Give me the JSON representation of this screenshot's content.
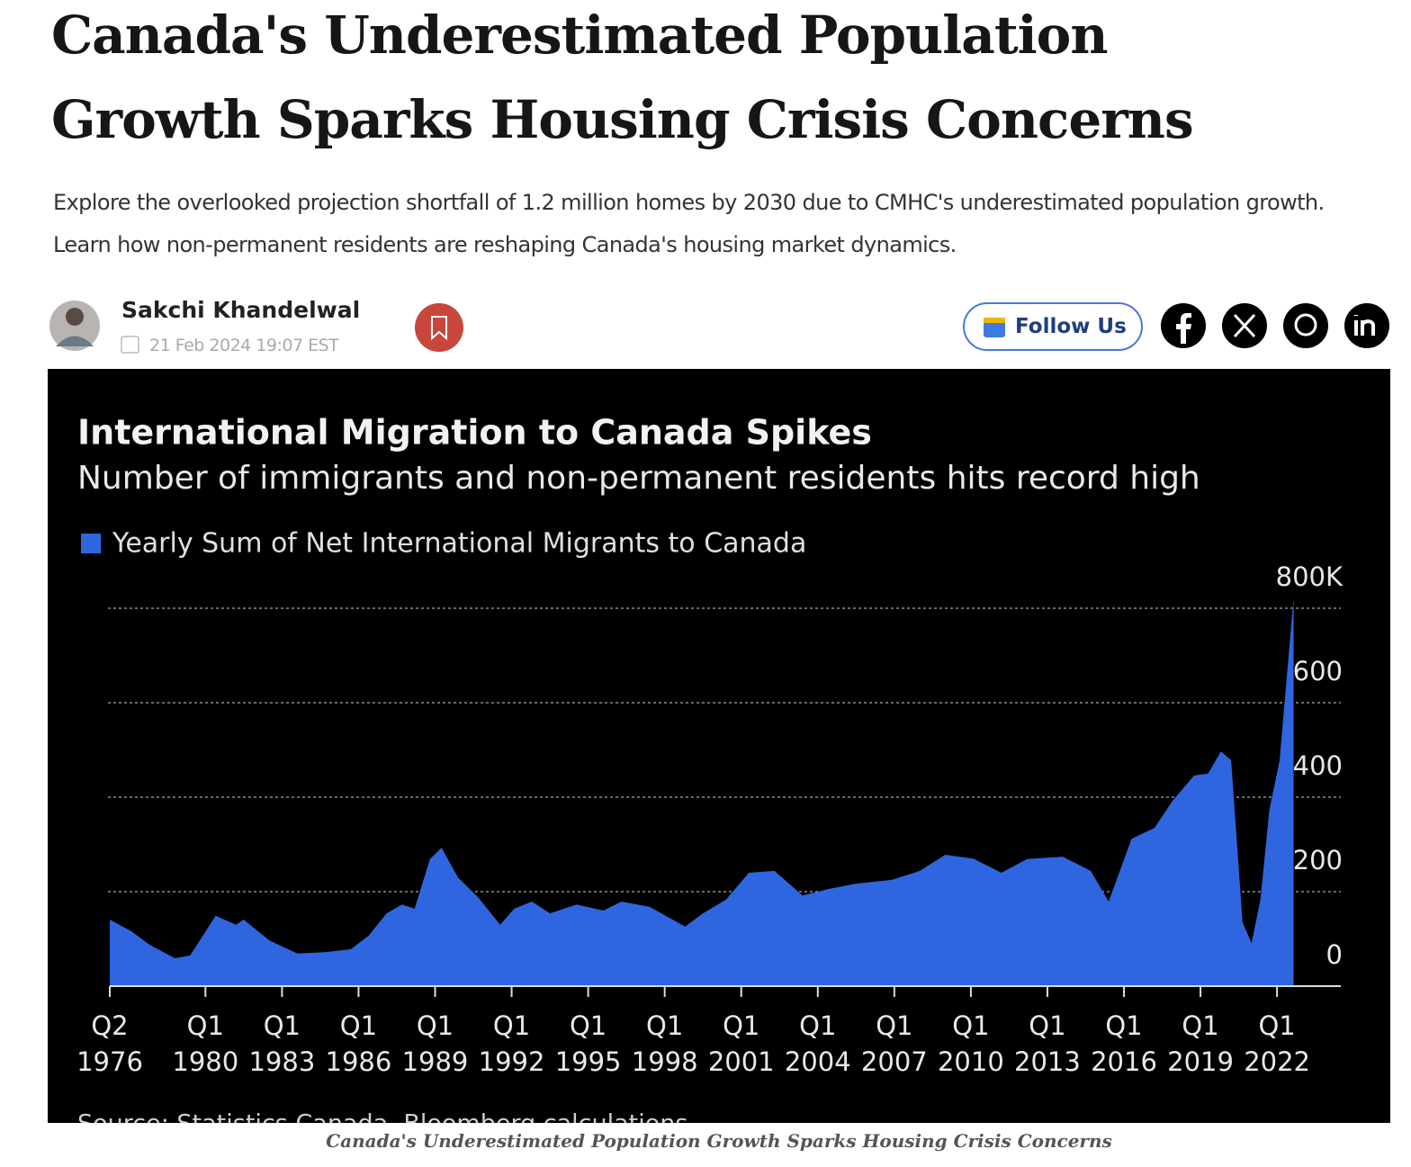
{
  "article": {
    "title": "Canada's Underestimated Population Growth Sparks Housing Crisis Concerns",
    "subtitle": "Explore the overlooked projection shortfall of 1.2 million homes by 2030 due to CMHC's underestimated population growth. Learn how non-permanent residents are reshaping Canada's housing market dynamics.",
    "author": "Sakchi Khandelwal",
    "date": "21 Feb 2024 19:07 EST",
    "follow_button": "Follow Us",
    "image_caption": "Canada's Underestimated Population Growth Sparks Housing Crisis Concerns"
  },
  "chart_data": {
    "type": "area",
    "title": "International Migration to Canada Spikes",
    "subtitle": "Number of immigrants and non-permanent residents hits record high",
    "source": "Source: Statistics Canada, Bloomberg calculations",
    "legend": "top-left",
    "grid": true,
    "x": [
      1976.25,
      1977.1,
      1977.8,
      1978.8,
      1979.4,
      1980.4,
      1981.2,
      1981.5,
      1982.5,
      1983.6,
      1984.7,
      1985.7,
      1986.4,
      1987.1,
      1987.7,
      1988.2,
      1988.8,
      1989.25,
      1989.9,
      1990.7,
      1991.55,
      1992.1,
      1992.8,
      1993.5,
      1994.55,
      1995.6,
      1996.3,
      1997.4,
      1998.8,
      1999.5,
      2000.4,
      2001.3,
      2002.3,
      2003.4,
      2004.45,
      2005.5,
      2006.9,
      2008.0,
      2009.0,
      2010.1,
      2011.2,
      2012.2,
      2013.6,
      2014.7,
      2015.4,
      2016.3,
      2017.2,
      2017.9,
      2018.75,
      2019.3,
      2019.8,
      2020.2,
      2020.65,
      2021.0,
      2021.35,
      2021.7,
      2022.1,
      2022.65
    ],
    "series": [
      {
        "name": "Yearly Sum of Net International Migrants to Canada",
        "color": "#2f66e0",
        "values": [
          141,
          116,
          88,
          59,
          65,
          149,
          130,
          141,
          97,
          69,
          72,
          78,
          107,
          154,
          173,
          164,
          269,
          293,
          230,
          187,
          130,
          164,
          179,
          154,
          173,
          160,
          179,
          168,
          126,
          154,
          183,
          240,
          244,
          192,
          206,
          217,
          225,
          244,
          278,
          270,
          240,
          269,
          274,
          244,
          179,
          312,
          335,
          392,
          446,
          450,
          497,
          478,
          135,
          91,
          183,
          373,
          478,
          821
        ]
      }
    ],
    "xlim": [
      1976.25,
      2024.5
    ],
    "xticks": [
      {
        "value": 1976.25,
        "label": "Q2\n1976"
      },
      {
        "value": 1980,
        "label": "Q1\n1980"
      },
      {
        "value": 1983,
        "label": "Q1\n1983"
      },
      {
        "value": 1986,
        "label": "Q1\n1986"
      },
      {
        "value": 1989,
        "label": "Q1\n1989"
      },
      {
        "value": 1992,
        "label": "Q1\n1992"
      },
      {
        "value": 1995,
        "label": "Q1\n1995"
      },
      {
        "value": 1998,
        "label": "Q1\n1998"
      },
      {
        "value": 2001,
        "label": "Q1\n2001"
      },
      {
        "value": 2004,
        "label": "Q1\n2004"
      },
      {
        "value": 2007,
        "label": "Q1\n2007"
      },
      {
        "value": 2010,
        "label": "Q1\n2010"
      },
      {
        "value": 2013,
        "label": "Q1\n2013"
      },
      {
        "value": 2016,
        "label": "Q1\n2016"
      },
      {
        "value": 2019,
        "label": "Q1\n2019"
      },
      {
        "value": 2022,
        "label": "Q1\n2022"
      }
    ],
    "ylim": [
      0,
      840
    ],
    "yticks": [
      0,
      200,
      400,
      600,
      {
        "value": 800,
        "label": "800K"
      }
    ]
  }
}
